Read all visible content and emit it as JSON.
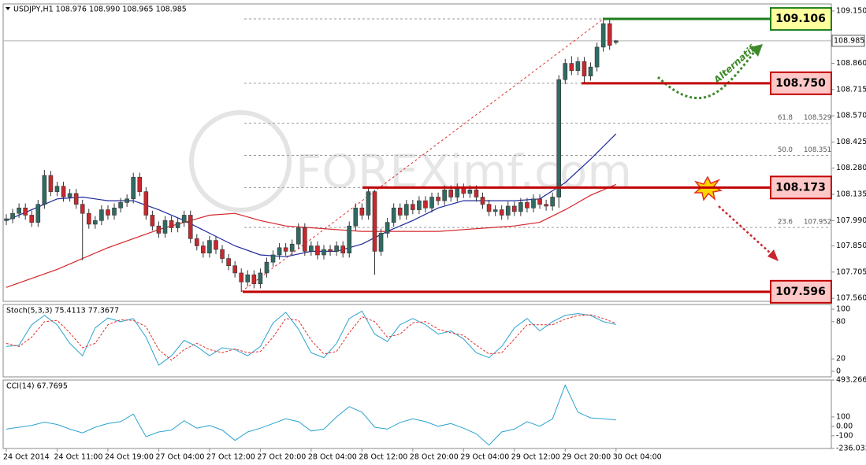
{
  "chart_data": [
    {
      "type": "candlestick",
      "title": "USDJPY,H1  108.976 108.990 108.965 108.985",
      "categories": [
        "24 Oct 2014",
        null,
        null,
        null,
        null,
        null,
        null,
        null,
        "24 Oct 11:00",
        null,
        null,
        null,
        null,
        null,
        null,
        null,
        "24 Oct 19:00",
        null,
        null,
        null,
        null,
        null,
        null,
        null,
        "27 Oct 04:00",
        null,
        null,
        null,
        null,
        null,
        null,
        null,
        "27 Oct 12:00",
        null,
        null,
        null,
        null,
        null,
        null,
        null,
        "27 Oct 20:00",
        null,
        null,
        null,
        null,
        null,
        null,
        null,
        "28 Oct 04:00",
        null,
        null,
        null,
        null,
        null,
        null,
        null,
        "28 Oct 12:00",
        null,
        null,
        null,
        null,
        null,
        null,
        null,
        "28 Oct 20:00",
        null,
        null,
        null,
        null,
        null,
        null,
        null,
        "29 Oct 04:00",
        null,
        null,
        null,
        null,
        null,
        null,
        null,
        "29 Oct 12:00",
        null,
        null,
        null,
        null,
        null,
        null,
        null,
        "29 Oct 20:00",
        null,
        null,
        null,
        null,
        null,
        null,
        null,
        "30 Oct 04:00"
      ],
      "open": [
        107.99,
        108.0,
        108.03,
        108.06,
        108.02,
        107.98,
        108.08,
        108.24,
        108.15,
        108.18,
        108.12,
        108.14,
        108.08,
        108.03,
        107.97,
        107.99,
        108.05,
        108.02,
        108.06,
        108.09,
        108.11,
        108.23,
        108.15,
        108.02,
        107.96,
        107.92,
        107.99,
        107.95,
        107.98,
        108.02,
        107.89,
        107.85,
        107.81,
        107.88,
        107.83,
        107.78,
        107.74,
        107.7,
        107.65,
        107.69,
        107.64,
        107.7,
        107.76,
        107.8,
        107.84,
        107.82,
        107.86,
        107.95,
        107.82,
        107.85,
        107.8,
        107.83,
        107.82,
        107.85,
        107.81,
        107.96,
        108.06,
        108.02,
        108.15,
        107.82,
        107.92,
        107.98,
        108.06,
        108.02,
        108.08,
        108.05,
        108.1,
        108.06,
        108.12,
        108.1,
        108.16,
        108.12,
        108.17,
        108.14,
        108.16,
        108.12,
        108.08,
        108.04,
        108.05,
        108.02,
        108.07,
        108.04,
        108.09,
        108.06,
        108.11,
        108.08,
        108.07,
        108.12,
        108.77,
        108.86,
        108.82,
        108.87,
        108.79,
        108.84,
        108.95,
        109.08,
        108.976
      ],
      "high": [
        108.025,
        108.055,
        108.085,
        108.085,
        108.045,
        108.105,
        108.27,
        108.265,
        108.205,
        108.205,
        108.165,
        108.165,
        108.105,
        108.055,
        108.015,
        108.075,
        108.075,
        108.085,
        108.115,
        108.135,
        108.255,
        108.255,
        108.175,
        108.045,
        107.985,
        108.015,
        108.015,
        108.005,
        108.045,
        108.045,
        107.915,
        107.875,
        107.905,
        107.905,
        107.855,
        107.805,
        107.765,
        107.725,
        107.715,
        107.715,
        107.725,
        107.785,
        107.825,
        107.865,
        107.865,
        107.885,
        107.975,
        107.975,
        107.875,
        107.875,
        107.855,
        107.855,
        107.875,
        107.875,
        107.985,
        108.085,
        108.085,
        108.173,
        108.16,
        107.945,
        108.005,
        108.085,
        108.085,
        108.105,
        108.105,
        108.125,
        108.125,
        108.145,
        108.145,
        108.185,
        108.185,
        108.195,
        108.195,
        108.185,
        108.185,
        108.145,
        108.105,
        108.075,
        108.075,
        108.095,
        108.095,
        108.115,
        108.115,
        108.135,
        108.135,
        108.105,
        108.145,
        108.795,
        108.885,
        108.9,
        108.895,
        108.895,
        108.865,
        108.975,
        109.106,
        109.1,
        108.99
      ],
      "low": [
        107.965,
        107.975,
        108.005,
        107.995,
        107.955,
        107.955,
        108.055,
        108.125,
        108.125,
        108.095,
        108.095,
        108.055,
        107.77,
        107.945,
        107.945,
        107.965,
        107.995,
        107.995,
        108.035,
        108.065,
        108.085,
        108.125,
        107.995,
        107.935,
        107.895,
        107.895,
        107.925,
        107.925,
        107.955,
        107.865,
        107.825,
        107.785,
        107.785,
        107.805,
        107.755,
        107.715,
        107.675,
        107.596,
        107.625,
        107.615,
        107.615,
        107.675,
        107.735,
        107.775,
        107.795,
        107.795,
        107.835,
        107.795,
        107.795,
        107.775,
        107.775,
        107.795,
        107.795,
        107.785,
        107.785,
        107.935,
        107.995,
        107.995,
        107.69,
        107.795,
        107.895,
        107.955,
        107.995,
        107.995,
        108.025,
        108.025,
        108.035,
        108.035,
        108.075,
        108.075,
        108.095,
        108.095,
        108.115,
        108.115,
        108.095,
        108.055,
        108.015,
        108.015,
        107.995,
        107.995,
        108.015,
        108.015,
        108.035,
        108.035,
        108.055,
        108.045,
        108.045,
        108.06,
        108.745,
        108.795,
        108.795,
        108.75,
        108.765,
        108.815,
        108.925,
        108.935,
        108.965
      ],
      "close": [
        108.0,
        108.03,
        108.06,
        108.02,
        107.98,
        108.08,
        108.24,
        108.15,
        108.18,
        108.12,
        108.14,
        108.08,
        108.03,
        107.97,
        107.99,
        108.05,
        108.02,
        108.06,
        108.09,
        108.11,
        108.23,
        108.15,
        108.02,
        107.96,
        107.92,
        107.99,
        107.95,
        107.98,
        108.02,
        107.89,
        107.85,
        107.81,
        107.88,
        107.83,
        107.78,
        107.74,
        107.7,
        107.65,
        107.69,
        107.64,
        107.7,
        107.76,
        107.8,
        107.84,
        107.82,
        107.86,
        107.95,
        107.82,
        107.85,
        107.8,
        107.83,
        107.82,
        107.85,
        107.81,
        107.96,
        108.06,
        108.02,
        108.15,
        107.82,
        107.92,
        107.98,
        108.06,
        108.02,
        108.08,
        108.05,
        108.1,
        108.06,
        108.12,
        108.1,
        108.16,
        108.12,
        108.17,
        108.14,
        108.16,
        108.12,
        108.08,
        108.04,
        108.05,
        108.02,
        108.07,
        108.04,
        108.09,
        108.06,
        108.11,
        108.08,
        108.07,
        108.12,
        108.77,
        108.86,
        108.82,
        108.87,
        108.79,
        108.84,
        108.95,
        109.08,
        108.96,
        108.985
      ],
      "up_color": "#2f6b63",
      "down_color": "#c8282d",
      "overlays": [
        {
          "color": "#1f2a9c",
          "x": [
            0,
            4,
            8,
            12,
            16,
            20,
            24,
            28,
            32,
            36,
            40,
            44,
            48,
            52,
            56,
            60,
            64,
            68,
            72,
            76,
            80,
            84,
            88,
            92,
            96
          ],
          "values": [
            107.99,
            108.05,
            108.11,
            108.12,
            108.1,
            108.1,
            108.05,
            107.99,
            107.92,
            107.85,
            107.8,
            107.79,
            107.82,
            107.82,
            107.86,
            107.93,
            107.99,
            108.06,
            108.1,
            108.1,
            108.1,
            108.11,
            108.2,
            108.33,
            108.47
          ]
        },
        {
          "color": "#d4262a",
          "x": [
            0,
            4,
            8,
            12,
            16,
            20,
            24,
            28,
            32,
            36,
            40,
            44,
            48,
            52,
            56,
            60,
            64,
            68,
            72,
            76,
            80,
            84,
            88,
            92,
            96
          ],
          "values": [
            107.62,
            107.67,
            107.72,
            107.78,
            107.84,
            107.89,
            107.94,
            107.98,
            108.02,
            108.03,
            107.99,
            107.96,
            107.95,
            107.94,
            107.93,
            107.93,
            107.93,
            107.93,
            107.94,
            107.95,
            107.96,
            107.98,
            108.05,
            108.13,
            108.19
          ]
        }
      ],
      "levels": [
        {
          "value": 109.106,
          "color": "#1e7d1e",
          "fill": "#ffff9e"
        },
        {
          "value": 108.75,
          "label": "108.750",
          "color": "#c00000",
          "fill": "#ffc8c8"
        },
        {
          "value": 108.173,
          "color": "#c00000",
          "fill": "#ffc8c8"
        },
        {
          "value": 107.596,
          "color": "#c00000",
          "fill": "#ffc8c8"
        }
      ],
      "fib": [
        {
          "ratio": 61.8,
          "price": 108.529
        },
        {
          "ratio": {
            "value": 50,
            "label": "50.0"
          },
          "price": 108.351
        },
        {
          "ratio": 23.6,
          "price": 107.952
        }
      ],
      "last_price": 108.985,
      "annotation": "Alternatif",
      "watermark": "FOREXimf.com",
      "ylim": [
        107.543,
        109.189
      ],
      "yticks": [
        {
          "value": 109.15,
          "label": "109.150"
        },
        {
          "value": 108.86,
          "label": "108.860"
        },
        108.715,
        {
          "value": 108.57,
          "label": "108.570"
        },
        108.425,
        {
          "value": 108.28,
          "label": "108.280"
        },
        108.135,
        {
          "value": 107.99,
          "label": "107.990"
        },
        {
          "value": 107.85,
          "label": "107.850"
        },
        107.705,
        {
          "value": 107.56,
          "label": "107.560"
        }
      ]
    },
    {
      "type": "line",
      "title": "Stoch(5,3,3) 75.4113 77.3677",
      "x": [
        0,
        2,
        4,
        6,
        8,
        10,
        12,
        14,
        16,
        18,
        20,
        22,
        24,
        26,
        28,
        30,
        32,
        34,
        36,
        38,
        40,
        42,
        44,
        46,
        48,
        50,
        52,
        54,
        56,
        58,
        60,
        62,
        64,
        66,
        68,
        70,
        72,
        74,
        76,
        78,
        80,
        82,
        84,
        86,
        88,
        90,
        92,
        94,
        96
      ],
      "series": [
        {
          "color": "#2aa3cf",
          "values": [
            40,
            42,
            75,
            90,
            75,
            45,
            25,
            70,
            86,
            80,
            85,
            55,
            10,
            25,
            50,
            40,
            25,
            38,
            35,
            25,
            40,
            78,
            95,
            68,
            30,
            22,
            45,
            85,
            97,
            60,
            48,
            75,
            85,
            75,
            60,
            65,
            52,
            30,
            22,
            40,
            70,
            85,
            65,
            80,
            90,
            93,
            90,
            80,
            75.4113
          ]
        },
        {
          "color": "#e03030",
          "dashed": true,
          "values": [
            45,
            40,
            55,
            80,
            82,
            62,
            38,
            45,
            75,
            83,
            82,
            72,
            35,
            18,
            35,
            45,
            35,
            30,
            36,
            30,
            32,
            55,
            85,
            82,
            50,
            28,
            32,
            62,
            88,
            80,
            55,
            60,
            78,
            80,
            68,
            62,
            58,
            42,
            28,
            30,
            52,
            75,
            75,
            75,
            84,
            90,
            91,
            85,
            77.3677
          ]
        }
      ],
      "ylim": [
        -8.9,
        107.6
      ],
      "yticks": [
        100,
        80,
        20,
        0
      ]
    },
    {
      "type": "line",
      "title": "CCI(14) 67.7695",
      "x": [
        0,
        2,
        4,
        6,
        8,
        10,
        12,
        14,
        16,
        18,
        20,
        22,
        24,
        26,
        28,
        30,
        32,
        34,
        36,
        38,
        40,
        42,
        44,
        46,
        48,
        50,
        52,
        54,
        56,
        58,
        60,
        62,
        64,
        66,
        68,
        70,
        72,
        74,
        76,
        78,
        80,
        82,
        84,
        86,
        88,
        90,
        92,
        94,
        96
      ],
      "series": [
        {
          "color": "#2aa3cf",
          "values": [
            -30,
            -10,
            10,
            45,
            20,
            -30,
            -70,
            -10,
            30,
            50,
            130,
            -110,
            -60,
            -40,
            60,
            -20,
            10,
            -40,
            -150,
            -60,
            -20,
            30,
            80,
            50,
            -50,
            -30,
            100,
            210,
            150,
            -10,
            -30,
            40,
            80,
            50,
            0,
            30,
            -20,
            -80,
            -200,
            -60,
            -30,
            50,
            0,
            80,
            440,
            150,
            90,
            80,
            67.7695
          ]
        }
      ],
      "ylim": [
        -236.0332,
        493.266
      ],
      "yticks": [
        493.266,
        100,
        {
          "value": 0,
          "label": "0.00"
        },
        -100,
        -236.0332
      ]
    }
  ]
}
